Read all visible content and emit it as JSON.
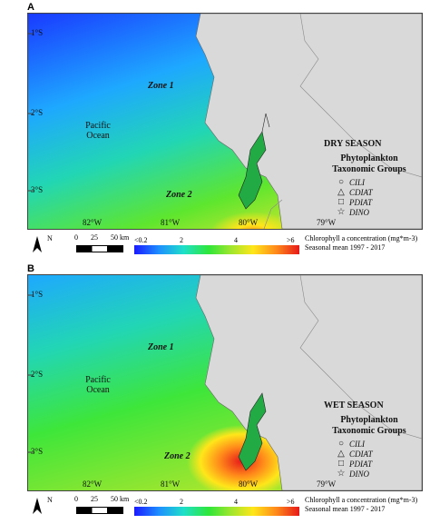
{
  "panels": [
    {
      "letter": "A",
      "season": "DRY SEASON",
      "groups_title": "Phytoplankton Taxonomic Groups",
      "zone1": "Zone 1",
      "zone2": "Zone 2",
      "ocean": "Pacific Ocean",
      "lat_labels": [
        "1°S",
        "2°S",
        "3°S"
      ],
      "lon_labels": [
        "82°W",
        "81°W",
        "80°W",
        "79°W"
      ],
      "legend": [
        {
          "symbol": "○",
          "name": "CILI"
        },
        {
          "symbol": "△",
          "name": "CDIAT"
        },
        {
          "symbol": "□",
          "name": "PDIAT"
        },
        {
          "symbol": "☆",
          "name": "DINO"
        }
      ]
    },
    {
      "letter": "B",
      "season": "WET SEASON",
      "groups_title": "Phytoplankton Taxonomic Groups",
      "zone1": "Zone 1",
      "zone2": "Zone 2",
      "ocean": "Pacific Ocean",
      "lat_labels": [
        "1°S",
        "2°S",
        "3°S"
      ],
      "lon_labels": [
        "82°W",
        "81°W",
        "80°W",
        "79°W"
      ],
      "legend": [
        {
          "symbol": "○",
          "name": "CILI"
        },
        {
          "symbol": "△",
          "name": "CDIAT"
        },
        {
          "symbol": "□",
          "name": "PDIAT"
        },
        {
          "symbol": "☆",
          "name": "DINO"
        }
      ]
    }
  ],
  "scale": {
    "ticks": [
      "0",
      "25",
      "50 km"
    ]
  },
  "north": "N",
  "colorbar": {
    "ticks": [
      "<0.2",
      "2",
      "4",
      ">6"
    ],
    "title": "Chlorophyll a concentration (mg*m-3)",
    "subtitle": "Seasonal mean 1997 - 2017"
  },
  "colors": {
    "land": "#d9d9d9",
    "ocean_low": "#1a1aff",
    "ocean_mid": "#2ee63a",
    "ocean_high": "#e61a1a",
    "estuary": "#22aa44"
  }
}
